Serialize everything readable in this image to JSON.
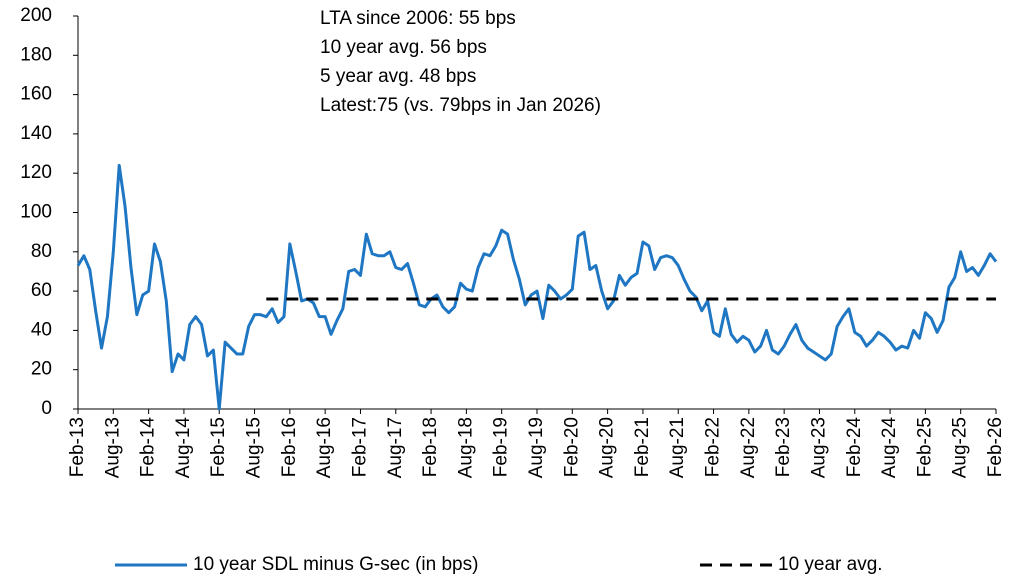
{
  "chart_data": {
    "type": "line",
    "annotations": [
      "LTA since 2006:  55 bps",
      "10 year avg. 56 bps",
      "5 year avg. 48 bps",
      "Latest:75 (vs. 79bps in Jan 2026)"
    ],
    "categories": [
      "Feb-13",
      null,
      null,
      null,
      null,
      null,
      "Aug-13",
      null,
      null,
      null,
      null,
      null,
      "Feb-14",
      null,
      null,
      null,
      null,
      null,
      "Aug-14",
      null,
      null,
      null,
      null,
      null,
      "Feb-15",
      null,
      null,
      null,
      null,
      null,
      "Aug-15",
      null,
      null,
      null,
      null,
      null,
      "Feb-16",
      null,
      null,
      null,
      null,
      null,
      "Aug-16",
      null,
      null,
      null,
      null,
      null,
      "Feb-17",
      null,
      null,
      null,
      null,
      null,
      "Aug-17",
      null,
      null,
      null,
      null,
      null,
      "Feb-18",
      null,
      null,
      null,
      null,
      null,
      "Aug-18",
      null,
      null,
      null,
      null,
      null,
      "Feb-19",
      null,
      null,
      null,
      null,
      null,
      "Aug-19",
      null,
      null,
      null,
      null,
      null,
      "Feb-20",
      null,
      null,
      null,
      null,
      null,
      "Aug-20",
      null,
      null,
      null,
      null,
      null,
      "Feb-21",
      null,
      null,
      null,
      null,
      null,
      "Aug-21",
      null,
      null,
      null,
      null,
      null,
      "Feb-22",
      null,
      null,
      null,
      null,
      null,
      "Aug-22",
      null,
      null,
      null,
      null,
      null,
      "Feb-23",
      null,
      null,
      null,
      null,
      null,
      "Aug-23",
      null,
      null,
      null,
      null,
      null,
      "Feb-24",
      null,
      null,
      null,
      null,
      null,
      "Aug-24",
      null,
      null,
      null,
      null,
      null,
      "Feb-25",
      null,
      null,
      null,
      null,
      null,
      "Aug-25",
      null,
      null,
      null,
      null,
      null,
      "Feb-26"
    ],
    "series": [
      {
        "name": "10 year SDL minus G-sec (in bps)",
        "color": "#1f77c4",
        "dashed": false,
        "values": [
          73,
          78,
          71,
          50,
          31,
          47,
          80,
          124,
          103,
          72,
          48,
          58,
          60,
          84,
          75,
          55,
          19,
          28,
          25,
          43,
          47,
          43,
          27,
          30,
          0,
          34,
          31,
          28,
          28,
          42,
          48,
          48,
          47,
          51,
          44,
          47,
          84,
          70,
          55,
          56,
          54,
          47,
          47,
          38,
          45,
          51,
          70,
          71,
          68,
          89,
          79,
          78,
          78,
          80,
          72,
          71,
          74,
          64,
          53,
          52,
          56,
          58,
          52,
          49,
          52,
          64,
          61,
          60,
          72,
          79,
          78,
          83,
          91,
          89,
          76,
          66,
          53,
          58,
          60,
          46,
          63,
          60,
          56,
          58,
          61,
          88,
          90,
          71,
          73,
          60,
          51,
          55,
          68,
          63,
          67,
          69,
          85,
          83,
          71,
          77,
          78,
          77,
          73,
          66,
          60,
          57,
          50,
          55,
          39,
          37,
          51,
          38,
          34,
          37,
          35,
          29,
          32,
          40,
          30,
          28,
          32,
          38,
          43,
          35,
          31,
          29,
          27,
          25,
          28,
          42,
          47,
          51,
          39,
          37,
          32,
          35,
          39,
          37,
          34,
          30,
          32,
          31,
          40,
          36,
          49,
          46,
          39,
          45,
          62,
          67,
          80,
          70,
          72,
          68,
          73,
          79,
          75
        ]
      },
      {
        "name": "10 year avg.",
        "color": "#000000",
        "dashed": true,
        "values": [
          null,
          null,
          null,
          null,
          null,
          null,
          null,
          null,
          null,
          null,
          null,
          null,
          null,
          null,
          null,
          null,
          null,
          null,
          null,
          null,
          null,
          null,
          null,
          null,
          null,
          null,
          null,
          null,
          null,
          null,
          null,
          null,
          56,
          56,
          56,
          56,
          56,
          56,
          56,
          56,
          56,
          56,
          56,
          56,
          56,
          56,
          56,
          56,
          56,
          56,
          56,
          56,
          56,
          56,
          56,
          56,
          56,
          56,
          56,
          56,
          56,
          56,
          56,
          56,
          56,
          56,
          56,
          56,
          56,
          56,
          56,
          56,
          56,
          56,
          56,
          56,
          56,
          56,
          56,
          56,
          56,
          56,
          56,
          56,
          56,
          56,
          56,
          56,
          56,
          56,
          56,
          56,
          56,
          56,
          56,
          56,
          56,
          56,
          56,
          56,
          56,
          56,
          56,
          56,
          56,
          56,
          56,
          56,
          56,
          56,
          56,
          56,
          56,
          56,
          56,
          56,
          56,
          56,
          56,
          56,
          56,
          56,
          56,
          56,
          56,
          56,
          56,
          56,
          56,
          56,
          56,
          56,
          56,
          56,
          56,
          56,
          56,
          56,
          56,
          56,
          56,
          56,
          56,
          56,
          56,
          56,
          56,
          56,
          56,
          56,
          56,
          56,
          56,
          56,
          56,
          56,
          56
        ]
      }
    ],
    "ylim": [
      0,
      200
    ],
    "yticks": [
      0,
      20,
      40,
      60,
      80,
      100,
      120,
      140,
      160,
      180,
      200
    ],
    "grid": false,
    "legend": "bottom"
  }
}
